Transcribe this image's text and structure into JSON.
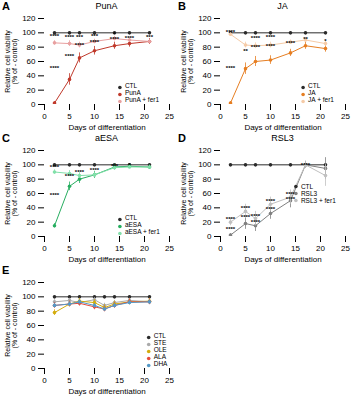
{
  "chart_data": [
    {
      "type": "line",
      "panel": "A",
      "title": "PunA",
      "x": [
        2,
        5,
        7,
        10,
        14,
        17,
        21
      ],
      "series": [
        {
          "name": "CTL",
          "color": "#2b2b2b",
          "values": [
            100,
            100,
            100,
            100,
            100,
            100,
            100
          ],
          "errors": [
            1,
            1,
            1,
            1,
            1,
            1,
            1
          ]
        },
        {
          "name": "PunA",
          "color": "#c0392b",
          "values": [
            2,
            35,
            65,
            75,
            82,
            85,
            88
          ],
          "errors": [
            2,
            8,
            7,
            6,
            5,
            5,
            4
          ]
        },
        {
          "name": "PunA + fer1",
          "color": "#e8a0a0",
          "values": [
            86,
            85,
            83,
            88,
            92,
            90,
            88
          ],
          "errors": [
            3,
            4,
            4,
            3,
            3,
            3,
            3
          ]
        }
      ],
      "xlabel": "Days of differentiation",
      "ylabel": "Relative cell viability\n(% of - control)",
      "xlim": [
        0,
        25
      ],
      "xticks": [
        0,
        5,
        10,
        15,
        20,
        25
      ],
      "ylim": [
        0,
        120
      ],
      "yticks": [
        0,
        20,
        40,
        60,
        80,
        100,
        120
      ],
      "legend": "lower right",
      "annotations": [
        {
          "text": "****",
          "x": 2,
          "y": 51
        },
        {
          "text": "****",
          "x": 5,
          "y": 67.5
        },
        {
          "text": "****",
          "x": 7,
          "y": 82.5
        },
        {
          "text": "****",
          "x": 10,
          "y": 87.5
        },
        {
          "text": "****",
          "x": 14,
          "y": 91
        },
        {
          "text": "****",
          "x": 17,
          "y": 92.5
        },
        {
          "text": "***",
          "x": 21,
          "y": 94
        },
        {
          "text": "****",
          "x": 2,
          "y": 95
        },
        {
          "text": "****",
          "x": 5,
          "y": 94.5
        },
        {
          "text": "***",
          "x": 7,
          "y": 93.5
        },
        {
          "text": "***",
          "x": 10,
          "y": 96
        },
        {
          "text": "*",
          "x": 14,
          "y": 98
        }
      ]
    },
    {
      "type": "line",
      "panel": "B",
      "title": "JA",
      "x": [
        2,
        5,
        7,
        10,
        14,
        17,
        21
      ],
      "series": [
        {
          "name": "CTL",
          "color": "#2b2b2b",
          "values": [
            100,
            100,
            100,
            100,
            100,
            100,
            100
          ],
          "errors": [
            1,
            1,
            1,
            1,
            1,
            1,
            1
          ]
        },
        {
          "name": "JA",
          "color": "#e67e22",
          "values": [
            2,
            50,
            60,
            62,
            72,
            82,
            78
          ],
          "errors": [
            2,
            8,
            7,
            6,
            5,
            5,
            5
          ]
        },
        {
          "name": "JA + fer1",
          "color": "#f5cba7",
          "values": [
            98,
            83,
            82,
            83,
            87,
            90,
            85
          ],
          "errors": [
            2,
            4,
            4,
            4,
            3,
            3,
            4
          ]
        }
      ],
      "xlabel": "Days of differentiation",
      "ylabel": "Relative cell viability\n(% of - control)",
      "xlim": [
        0,
        25
      ],
      "xticks": [
        0,
        5,
        10,
        15,
        20,
        25
      ],
      "ylim": [
        0,
        120
      ],
      "yticks": [
        0,
        20,
        40,
        60,
        80,
        100,
        120
      ],
      "legend": "lower right",
      "annotations": [
        {
          "text": "****",
          "x": 2,
          "y": 51
        },
        {
          "text": "**",
          "x": 5,
          "y": 75
        },
        {
          "text": "****",
          "x": 7,
          "y": 80
        },
        {
          "text": "****",
          "x": 10,
          "y": 81
        },
        {
          "text": "****",
          "x": 14,
          "y": 86
        },
        {
          "text": "**",
          "x": 17,
          "y": 91
        },
        {
          "text": "*",
          "x": 21,
          "y": 89
        },
        {
          "text": "****",
          "x": 2,
          "y": 101
        },
        {
          "text": "****",
          "x": 7,
          "y": 93
        },
        {
          "text": "****",
          "x": 10,
          "y": 93.5
        }
      ]
    },
    {
      "type": "line",
      "panel": "C",
      "title": "aESA",
      "x": [
        2,
        5,
        7,
        10,
        14,
        17,
        21
      ],
      "series": [
        {
          "name": "CTL",
          "color": "#2b2b2b",
          "values": [
            100,
            100,
            100,
            100,
            100,
            100,
            100
          ],
          "errors": [
            1,
            1,
            1,
            1,
            1,
            1,
            1
          ]
        },
        {
          "name": "aESA",
          "color": "#27ae60",
          "values": [
            15,
            70,
            80,
            86,
            97,
            98,
            97
          ],
          "errors": [
            3,
            6,
            6,
            5,
            4,
            3,
            3
          ]
        },
        {
          "name": "aESA + fer1",
          "color": "#82e0aa",
          "values": [
            90,
            88,
            85,
            86,
            96,
            97,
            97
          ],
          "errors": [
            3,
            4,
            4,
            4,
            3,
            2,
            2
          ]
        }
      ],
      "xlabel": "Days of differentiation",
      "ylabel": "Relative cell viability\n(% of - control)",
      "xlim": [
        0,
        25
      ],
      "xticks": [
        0,
        5,
        10,
        15,
        20,
        25
      ],
      "ylim": [
        0,
        120
      ],
      "yticks": [
        0,
        20,
        40,
        60,
        80,
        100,
        120
      ],
      "legend": "lower right",
      "annotations": [
        {
          "text": "****",
          "x": 2,
          "y": 57.5
        },
        {
          "text": "****",
          "x": 5,
          "y": 85
        },
        {
          "text": "****",
          "x": 7,
          "y": 90
        },
        {
          "text": "****",
          "x": 10,
          "y": 93
        },
        {
          "text": "***",
          "x": 14,
          "y": 98.5
        },
        {
          "text": "*",
          "x": 17,
          "y": 99
        },
        {
          "text": "****",
          "x": 2,
          "y": 97
        }
      ]
    },
    {
      "type": "line",
      "panel": "D",
      "title": "RSL3",
      "x": [
        2,
        5,
        7,
        10,
        14,
        17,
        21
      ],
      "series": [
        {
          "name": "CTL",
          "color": "#2b2b2b",
          "values": [
            100,
            100,
            100,
            100,
            100,
            100,
            100
          ],
          "errors": [
            1,
            1,
            1,
            1,
            1,
            1,
            1
          ]
        },
        {
          "name": "RSL3",
          "color": "#808080",
          "values": [
            2,
            18,
            15,
            32,
            50,
            100,
            95
          ],
          "errors": [
            2,
            8,
            8,
            8,
            10,
            5,
            15
          ]
        },
        {
          "name": "RSL3 + fer1",
          "color": "#c0c0c0",
          "values": [
            20,
            35,
            25,
            45,
            55,
            100,
            85
          ],
          "errors": [
            5,
            10,
            10,
            10,
            10,
            5,
            15
          ]
        }
      ],
      "xlabel": "Days of differentiation",
      "ylabel": "Relative cell viability\n(% of - control)",
      "xlim": [
        0,
        25
      ],
      "xticks": [
        0,
        5,
        10,
        15,
        20,
        25
      ],
      "ylim": [
        0,
        120
      ],
      "yticks": [
        0,
        20,
        40,
        60,
        80,
        100,
        120
      ],
      "legend": "center right",
      "annotations": [
        {
          "text": "****",
          "x": 2,
          "y": 11
        },
        {
          "text": "****",
          "x": 5,
          "y": 26.5
        },
        {
          "text": "****",
          "x": 7,
          "y": 20
        },
        {
          "text": "****",
          "x": 10,
          "y": 38.5
        },
        {
          "text": "****",
          "x": 14,
          "y": 52.5
        },
        {
          "text": "****",
          "x": 17,
          "y": 100
        },
        {
          "text": "****",
          "x": 2,
          "y": 24
        },
        {
          "text": "****",
          "x": 5,
          "y": 39
        },
        {
          "text": "****",
          "x": 7,
          "y": 29
        },
        {
          "text": "****",
          "x": 10,
          "y": 49
        },
        {
          "text": "****",
          "x": 14,
          "y": 59
        }
      ]
    },
    {
      "type": "line",
      "panel": "E",
      "x": [
        2,
        5,
        7,
        10,
        12,
        14,
        17,
        21
      ],
      "series": [
        {
          "name": "CTL",
          "color": "#2b2b2b",
          "values": [
            100,
            100,
            100,
            100,
            100,
            100,
            100,
            100
          ],
          "errors": [
            1,
            1,
            1,
            1,
            1,
            1,
            1,
            1
          ]
        },
        {
          "name": "STE",
          "color": "#aaaaaa",
          "values": [
            93,
            95,
            92,
            96,
            88,
            92,
            95,
            93
          ],
          "errors": [
            3,
            3,
            3,
            3,
            3,
            3,
            3,
            3
          ]
        },
        {
          "name": "OLE",
          "color": "#d4ac0d",
          "values": [
            78,
            90,
            94,
            92,
            85,
            90,
            93,
            94
          ],
          "errors": [
            4,
            4,
            4,
            4,
            4,
            4,
            4,
            4
          ]
        },
        {
          "name": "ALA",
          "color": "#e74c3c",
          "values": [
            88,
            90,
            91,
            86,
            83,
            88,
            93,
            93
          ],
          "errors": [
            4,
            4,
            4,
            4,
            4,
            4,
            4,
            4
          ]
        },
        {
          "name": "DHA",
          "color": "#5499c7",
          "values": [
            88,
            90,
            93,
            88,
            83,
            88,
            92,
            93
          ],
          "errors": [
            3,
            3,
            3,
            3,
            3,
            3,
            3,
            3
          ]
        }
      ],
      "xlabel": "Days of differentiation",
      "ylabel": "Relative cell viability\n(% of - control)",
      "xlim": [
        0,
        25
      ],
      "xticks": [
        0,
        5,
        10,
        15,
        20,
        25
      ],
      "ylim": [
        0,
        120
      ],
      "yticks": [
        0,
        20,
        40,
        60,
        80,
        100,
        120
      ],
      "legend": "lower right"
    }
  ]
}
